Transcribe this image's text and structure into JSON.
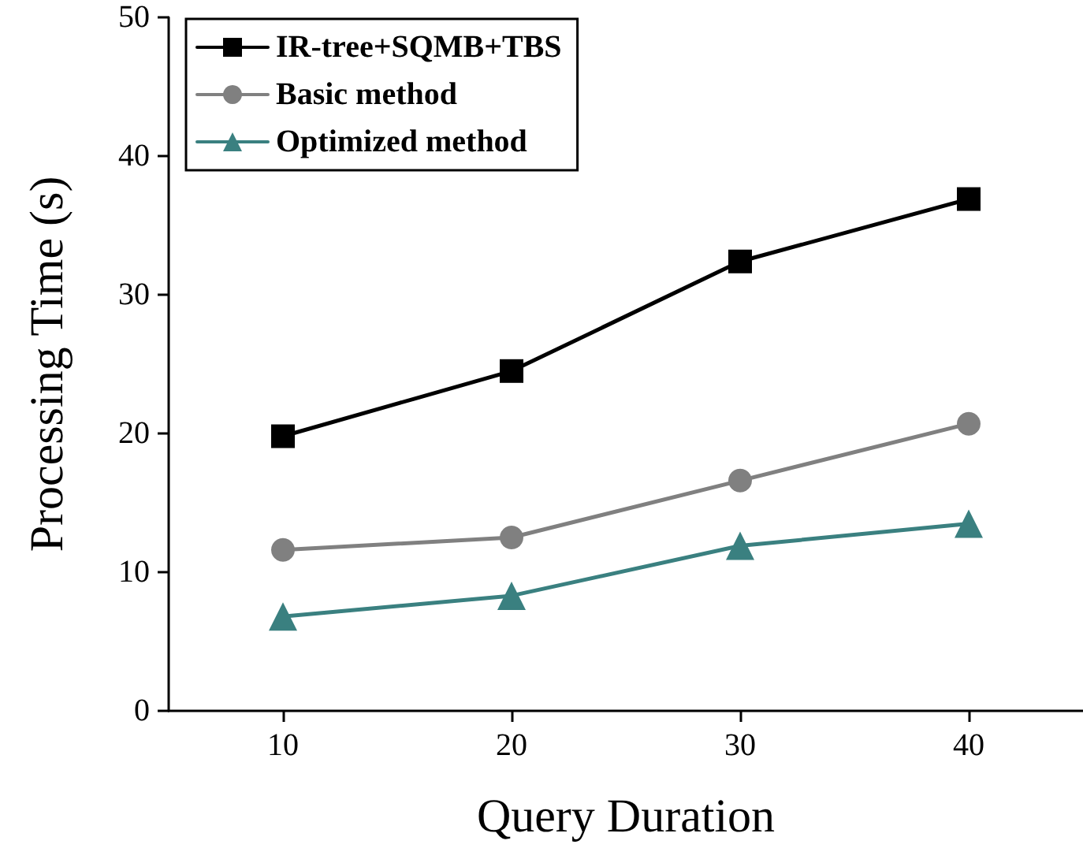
{
  "chart_data": {
    "type": "line",
    "xlabel": "Query Duration",
    "ylabel": "Processing Time (s)",
    "x": [
      10,
      20,
      30,
      40
    ],
    "series": [
      {
        "name": "IR-tree+SQMB+TBS",
        "color": "#000000",
        "marker": "square",
        "values": [
          19.8,
          24.5,
          32.4,
          36.9
        ]
      },
      {
        "name": "Basic method",
        "color": "#808080",
        "marker": "circle",
        "values": [
          11.6,
          12.5,
          16.6,
          20.7
        ]
      },
      {
        "name": "Optimized method",
        "color": "#3a8080",
        "marker": "triangle",
        "values": [
          6.8,
          8.3,
          11.9,
          13.5
        ]
      }
    ],
    "xlim": [
      5,
      45
    ],
    "xticks": [
      10,
      20,
      30,
      40
    ],
    "ylim": [
      0,
      50
    ],
    "yticks": [
      0,
      10,
      20,
      30,
      40,
      50
    ],
    "grid": false,
    "legend": "top left",
    "line_style": "solid"
  }
}
